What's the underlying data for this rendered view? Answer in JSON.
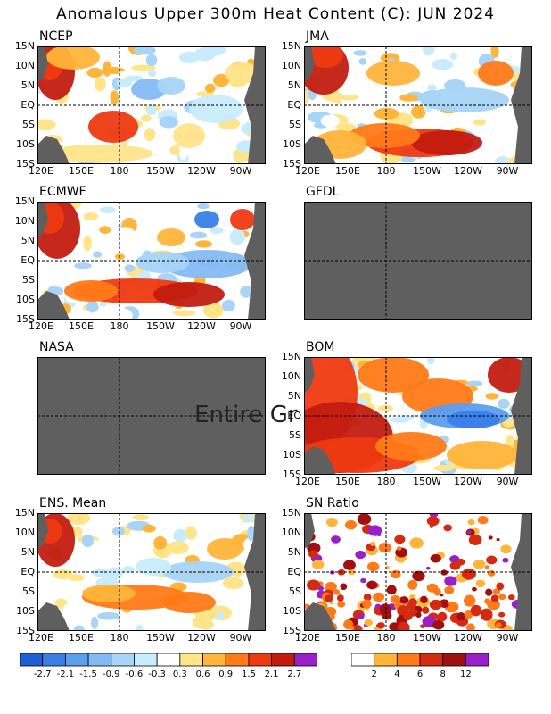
{
  "title": "Anomalous Upper 300m Heat Content (C): JUN 2024",
  "lat_labels": [
    "15N",
    "10N",
    "5N",
    "EQ",
    "5S",
    "10S",
    "15S"
  ],
  "lon_labels": [
    "120E",
    "150E",
    "180",
    "150W",
    "120W",
    "90W"
  ],
  "panels": [
    {
      "name": "NCEP",
      "status": "data"
    },
    {
      "name": "JMA",
      "status": "data"
    },
    {
      "name": "ECMWF",
      "status": "data"
    },
    {
      "name": "GFDL",
      "status": "missing"
    },
    {
      "name": "NASA",
      "status": "missing",
      "overlay": "Entire Gr"
    },
    {
      "name": "BOM",
      "status": "data"
    },
    {
      "name": "ENS. Mean",
      "status": "data"
    },
    {
      "name": "SN Ratio",
      "status": "data"
    }
  ],
  "colors": {
    "land": "#5f5f5f",
    "missing": "#5f5f5f"
  },
  "chart_data": {
    "type": "heatmap",
    "title": "Anomalous Upper 300m Heat Content (C): JUN 2024",
    "x_axis": [
      "120E",
      "150E",
      "180",
      "150W",
      "120W",
      "90W"
    ],
    "y_axis": [
      "15N",
      "10N",
      "5N",
      "EQ",
      "5S",
      "10S",
      "15S"
    ],
    "anomaly_colorbar": {
      "labels": [
        "-2.7",
        "-2.1",
        "-1.5",
        "-0.9",
        "-0.6",
        "-0.3",
        "0.3",
        "0.6",
        "0.9",
        "1.5",
        "2.1",
        "2.7"
      ],
      "colors": [
        "#1f5fd6",
        "#3a7ee8",
        "#5a9ef0",
        "#84baf4",
        "#a8d4f8",
        "#c8ecfc",
        "#ffffff",
        "#ffe48a",
        "#ffb43a",
        "#ff7a18",
        "#ee3a12",
        "#c21c10",
        "#9a1fc8"
      ]
    },
    "sn_colorbar": {
      "labels": [
        "2",
        "4",
        "6",
        "8",
        "12"
      ],
      "colors": [
        "#ffffff",
        "#ffb43a",
        "#ff7a18",
        "#d42a12",
        "#a01010",
        "#9a1fc8"
      ]
    }
  }
}
